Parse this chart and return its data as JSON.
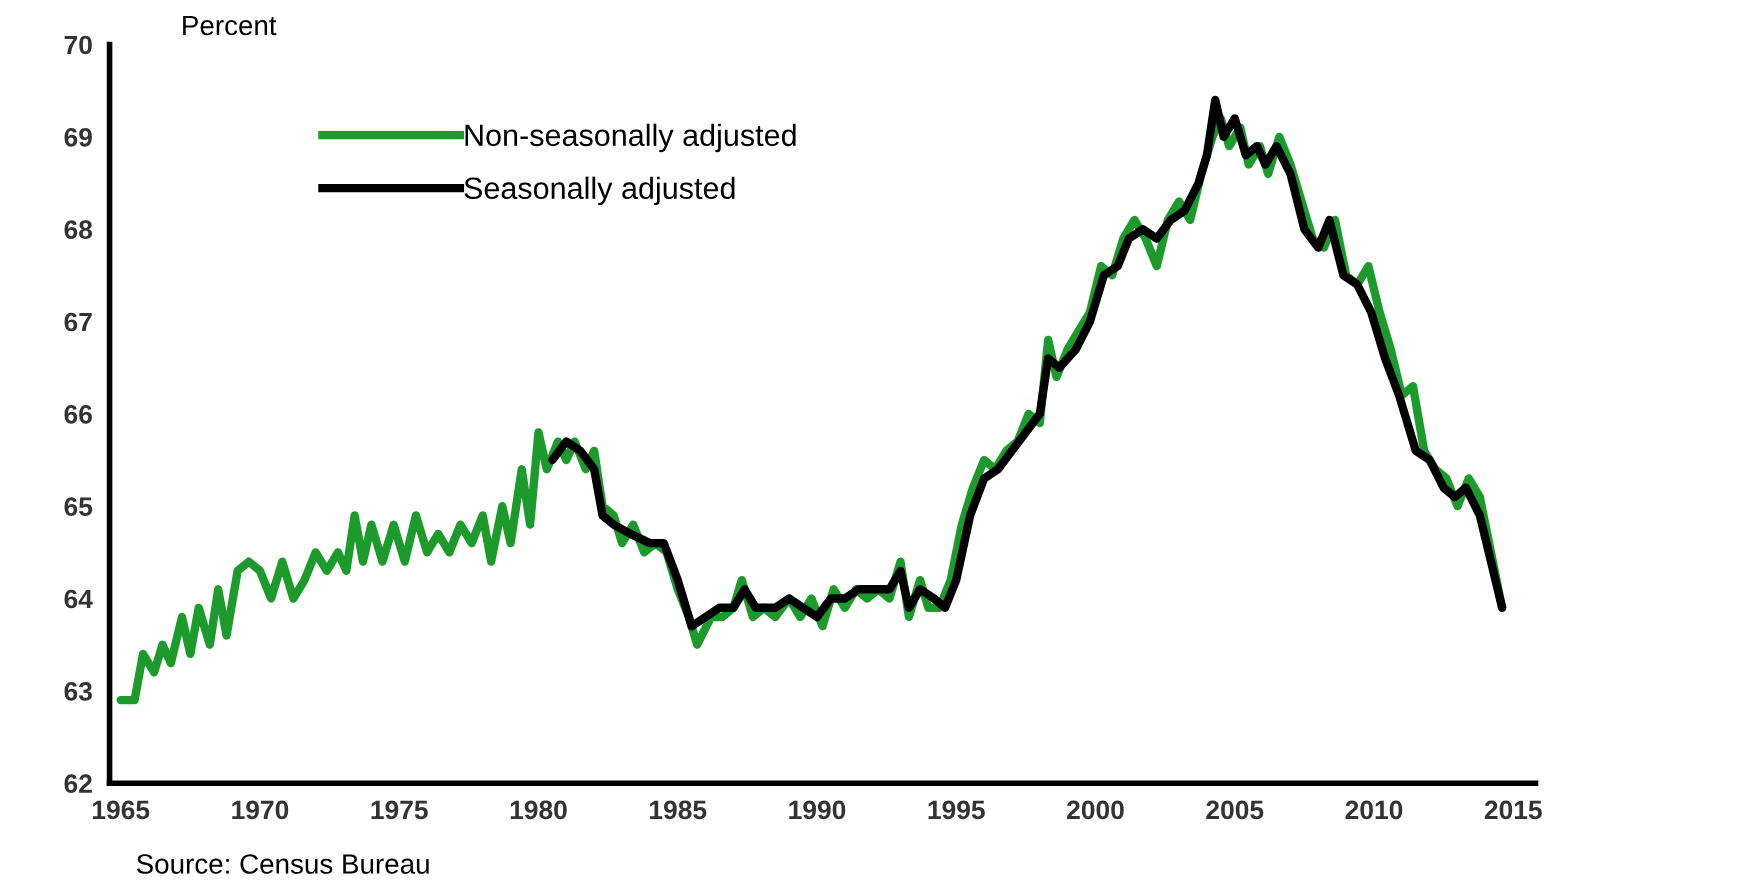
{
  "chart_data": {
    "type": "line",
    "ylabel": "Percent",
    "annotations": [
      "Source: Census Bureau"
    ],
    "xlim": [
      1964.6,
      2015.8
    ],
    "xticks": [
      1965,
      1970,
      1975,
      1980,
      1985,
      1990,
      1995,
      2000,
      2005,
      2010,
      2015
    ],
    "ylim": [
      62,
      70
    ],
    "yticks": [
      62,
      63,
      64,
      65,
      66,
      67,
      68,
      69,
      70
    ],
    "grid": false,
    "legend": "top left",
    "marker": "none",
    "line_style": "solid",
    "series": [
      {
        "name": "Non-seasonally adjusted",
        "color": "#1c9b2c",
        "x": [
          1965.0,
          1965.5,
          1965.8,
          1966.2,
          1966.5,
          1966.8,
          1967.2,
          1967.5,
          1967.8,
          1968.2,
          1968.5,
          1968.8,
          1969.2,
          1969.6,
          1970.0,
          1970.4,
          1970.8,
          1971.2,
          1971.6,
          1972.0,
          1972.4,
          1972.8,
          1973.1,
          1973.4,
          1973.7,
          1974.0,
          1974.4,
          1974.8,
          1975.2,
          1975.6,
          1976.0,
          1976.4,
          1976.8,
          1977.2,
          1977.6,
          1978.0,
          1978.3,
          1978.7,
          1979.0,
          1979.4,
          1979.7,
          1980.0,
          1980.3,
          1980.7,
          1981.0,
          1981.3,
          1981.7,
          1982.0,
          1982.3,
          1982.7,
          1983.0,
          1983.4,
          1983.8,
          1984.2,
          1984.6,
          1985.0,
          1985.4,
          1985.7,
          1986.2,
          1986.6,
          1987.0,
          1987.3,
          1987.7,
          1988.1,
          1988.5,
          1989.0,
          1989.4,
          1989.8,
          1990.2,
          1990.6,
          1991.0,
          1991.4,
          1991.8,
          1992.2,
          1992.6,
          1993.0,
          1993.3,
          1993.7,
          1994.0,
          1994.4,
          1994.8,
          1995.2,
          1995.6,
          1996.0,
          1996.4,
          1996.8,
          1997.2,
          1997.6,
          1998.0,
          1998.3,
          1998.6,
          1999.0,
          1999.4,
          1999.8,
          2000.2,
          2000.6,
          2001.0,
          2001.4,
          2001.8,
          2002.2,
          2002.6,
          2003.0,
          2003.4,
          2003.8,
          2004.2,
          2004.5,
          2004.8,
          2005.2,
          2005.5,
          2005.9,
          2006.2,
          2006.6,
          2007.0,
          2007.4,
          2007.8,
          2008.2,
          2008.6,
          2009.0,
          2009.4,
          2009.8,
          2010.2,
          2010.6,
          2011.0,
          2011.4,
          2011.8,
          2012.2,
          2012.6,
          2013.0,
          2013.4,
          2013.8,
          2014.2,
          2014.6
        ],
        "values": [
          62.9,
          62.9,
          63.4,
          63.2,
          63.5,
          63.3,
          63.8,
          63.4,
          63.9,
          63.5,
          64.1,
          63.6,
          64.3,
          64.4,
          64.3,
          64.0,
          64.4,
          64.0,
          64.2,
          64.5,
          64.3,
          64.5,
          64.3,
          64.9,
          64.4,
          64.8,
          64.4,
          64.8,
          64.4,
          64.9,
          64.5,
          64.7,
          64.5,
          64.8,
          64.6,
          64.9,
          64.4,
          65.0,
          64.6,
          65.4,
          64.8,
          65.8,
          65.4,
          65.7,
          65.5,
          65.7,
          65.4,
          65.6,
          65.0,
          64.9,
          64.6,
          64.8,
          64.5,
          64.6,
          64.5,
          64.1,
          63.8,
          63.5,
          63.8,
          63.8,
          63.9,
          64.2,
          63.8,
          63.9,
          63.8,
          64.0,
          63.8,
          64.0,
          63.7,
          64.1,
          63.9,
          64.1,
          64.0,
          64.1,
          64.0,
          64.4,
          63.8,
          64.2,
          63.9,
          63.9,
          64.2,
          64.8,
          65.2,
          65.5,
          65.4,
          65.6,
          65.7,
          66.0,
          65.9,
          66.8,
          66.4,
          66.7,
          66.9,
          67.1,
          67.6,
          67.5,
          67.9,
          68.1,
          67.9,
          67.6,
          68.1,
          68.3,
          68.1,
          68.6,
          69.0,
          69.2,
          68.9,
          69.1,
          68.7,
          68.9,
          68.6,
          69.0,
          68.7,
          68.3,
          67.9,
          67.8,
          68.1,
          67.5,
          67.4,
          67.6,
          67.1,
          66.7,
          66.2,
          66.3,
          65.6,
          65.4,
          65.3,
          65.0,
          65.3,
          65.1,
          64.5,
          63.9
        ]
      },
      {
        "name": "Seasonally adjusted",
        "color": "#000000",
        "x": [
          1980.5,
          1981.0,
          1981.5,
          1982.0,
          1982.3,
          1982.7,
          1983.3,
          1984.0,
          1984.5,
          1985.0,
          1985.5,
          1986.0,
          1986.5,
          1987.0,
          1987.4,
          1987.8,
          1988.5,
          1989.0,
          1989.5,
          1990.0,
          1990.5,
          1991.0,
          1991.5,
          1992.0,
          1992.6,
          1993.0,
          1993.3,
          1993.7,
          1994.2,
          1994.6,
          1995.0,
          1995.5,
          1996.0,
          1996.5,
          1997.0,
          1997.5,
          1998.0,
          1998.3,
          1998.7,
          1999.3,
          1999.8,
          2000.3,
          2000.8,
          2001.2,
          2001.7,
          2002.2,
          2002.7,
          2003.2,
          2003.7,
          2004.0,
          2004.3,
          2004.6,
          2005.0,
          2005.4,
          2005.8,
          2006.1,
          2006.5,
          2007.0,
          2007.5,
          2008.0,
          2008.4,
          2008.9,
          2009.4,
          2009.9,
          2010.4,
          2010.9,
          2011.1,
          2011.5,
          2012.0,
          2012.5,
          2012.9,
          2013.3,
          2013.8,
          2014.2,
          2014.6
        ],
        "values": [
          65.5,
          65.7,
          65.6,
          65.4,
          64.9,
          64.8,
          64.7,
          64.6,
          64.6,
          64.2,
          63.7,
          63.8,
          63.9,
          63.9,
          64.1,
          63.9,
          63.9,
          64.0,
          63.9,
          63.8,
          64.0,
          64.0,
          64.1,
          64.1,
          64.1,
          64.3,
          63.9,
          64.1,
          64.0,
          63.9,
          64.2,
          64.9,
          65.3,
          65.4,
          65.6,
          65.8,
          66.0,
          66.6,
          66.5,
          66.7,
          67.0,
          67.5,
          67.6,
          67.9,
          68.0,
          67.9,
          68.1,
          68.2,
          68.5,
          68.8,
          69.4,
          69.0,
          69.2,
          68.8,
          68.9,
          68.7,
          68.9,
          68.6,
          68.0,
          67.8,
          68.1,
          67.5,
          67.4,
          67.1,
          66.6,
          66.2,
          66.0,
          65.6,
          65.5,
          65.2,
          65.1,
          65.2,
          64.9,
          64.4,
          63.9
        ]
      }
    ]
  }
}
